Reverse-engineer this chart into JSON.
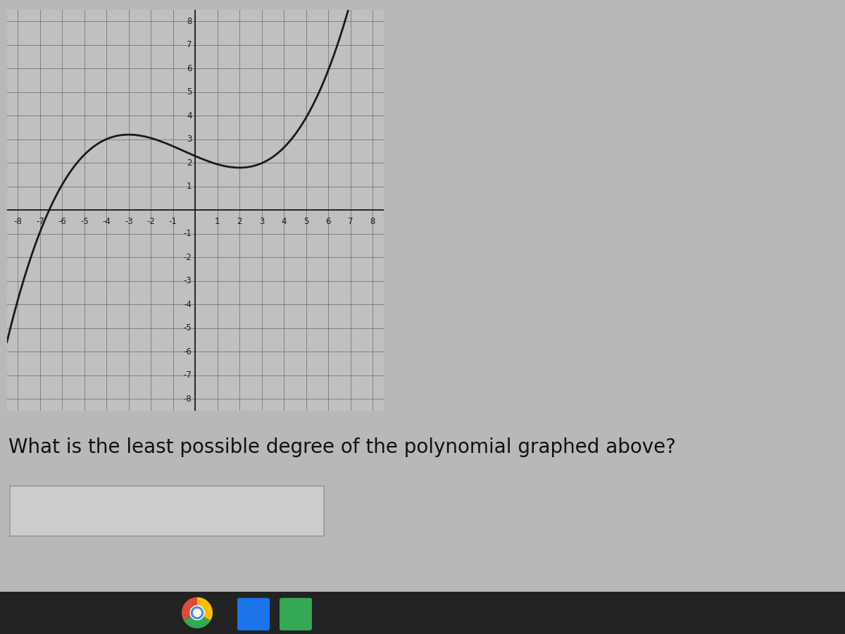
{
  "xlim": [
    -8.5,
    8.5
  ],
  "ylim": [
    -8.5,
    8.5
  ],
  "xticks": [
    -8,
    -7,
    -6,
    -5,
    -4,
    -3,
    -2,
    -1,
    1,
    2,
    3,
    4,
    5,
    6,
    7,
    8
  ],
  "yticks": [
    -8,
    -7,
    -6,
    -5,
    -4,
    -3,
    -2,
    -1,
    1,
    2,
    3,
    4,
    5,
    6,
    7,
    8
  ],
  "curve_color": "#1a1a1a",
  "curve_linewidth": 2.0,
  "grid_color": "#777777",
  "grid_linewidth": 0.6,
  "background_color": "#b8b8b8",
  "graph_bg_color": "#c0c0c0",
  "axis_color": "#1a1a1a",
  "question_text": "What is the least possible degree of the polynomial graphed above?",
  "question_fontsize": 20,
  "taskbar_color": "#222222",
  "box_color": "#cccccc",
  "box_border": "#999999"
}
